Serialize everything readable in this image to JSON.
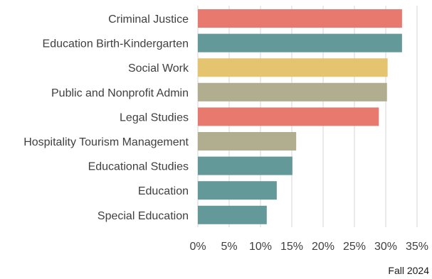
{
  "chart_data": {
    "type": "bar",
    "orientation": "horizontal",
    "categories": [
      "Criminal Justice",
      "Education Birth-Kindergarten",
      "Social Work",
      "Public and Nonprofit Admin",
      "Legal Studies",
      "Hospitality Tourism Management",
      "Educational Studies",
      "Education",
      "Special Education"
    ],
    "values": [
      32.6,
      32.6,
      30.3,
      30.2,
      28.9,
      15.7,
      15.1,
      12.6,
      11.0
    ],
    "bar_colors": [
      "#e8796f",
      "#64999a",
      "#e5c46f",
      "#b1ad8f",
      "#e8796f",
      "#b1ad8f",
      "#64999a",
      "#64999a",
      "#64999a"
    ],
    "xlim": [
      0,
      35
    ],
    "x_ticks": [
      0,
      5,
      10,
      15,
      20,
      25,
      30,
      35
    ],
    "tick_labels": [
      "0%",
      "5%",
      "10%",
      "15%",
      "20%",
      "25%",
      "30%",
      "35%"
    ],
    "grid": true,
    "caption": "Fall 2024",
    "title": "",
    "xlabel": "",
    "ylabel": ""
  }
}
